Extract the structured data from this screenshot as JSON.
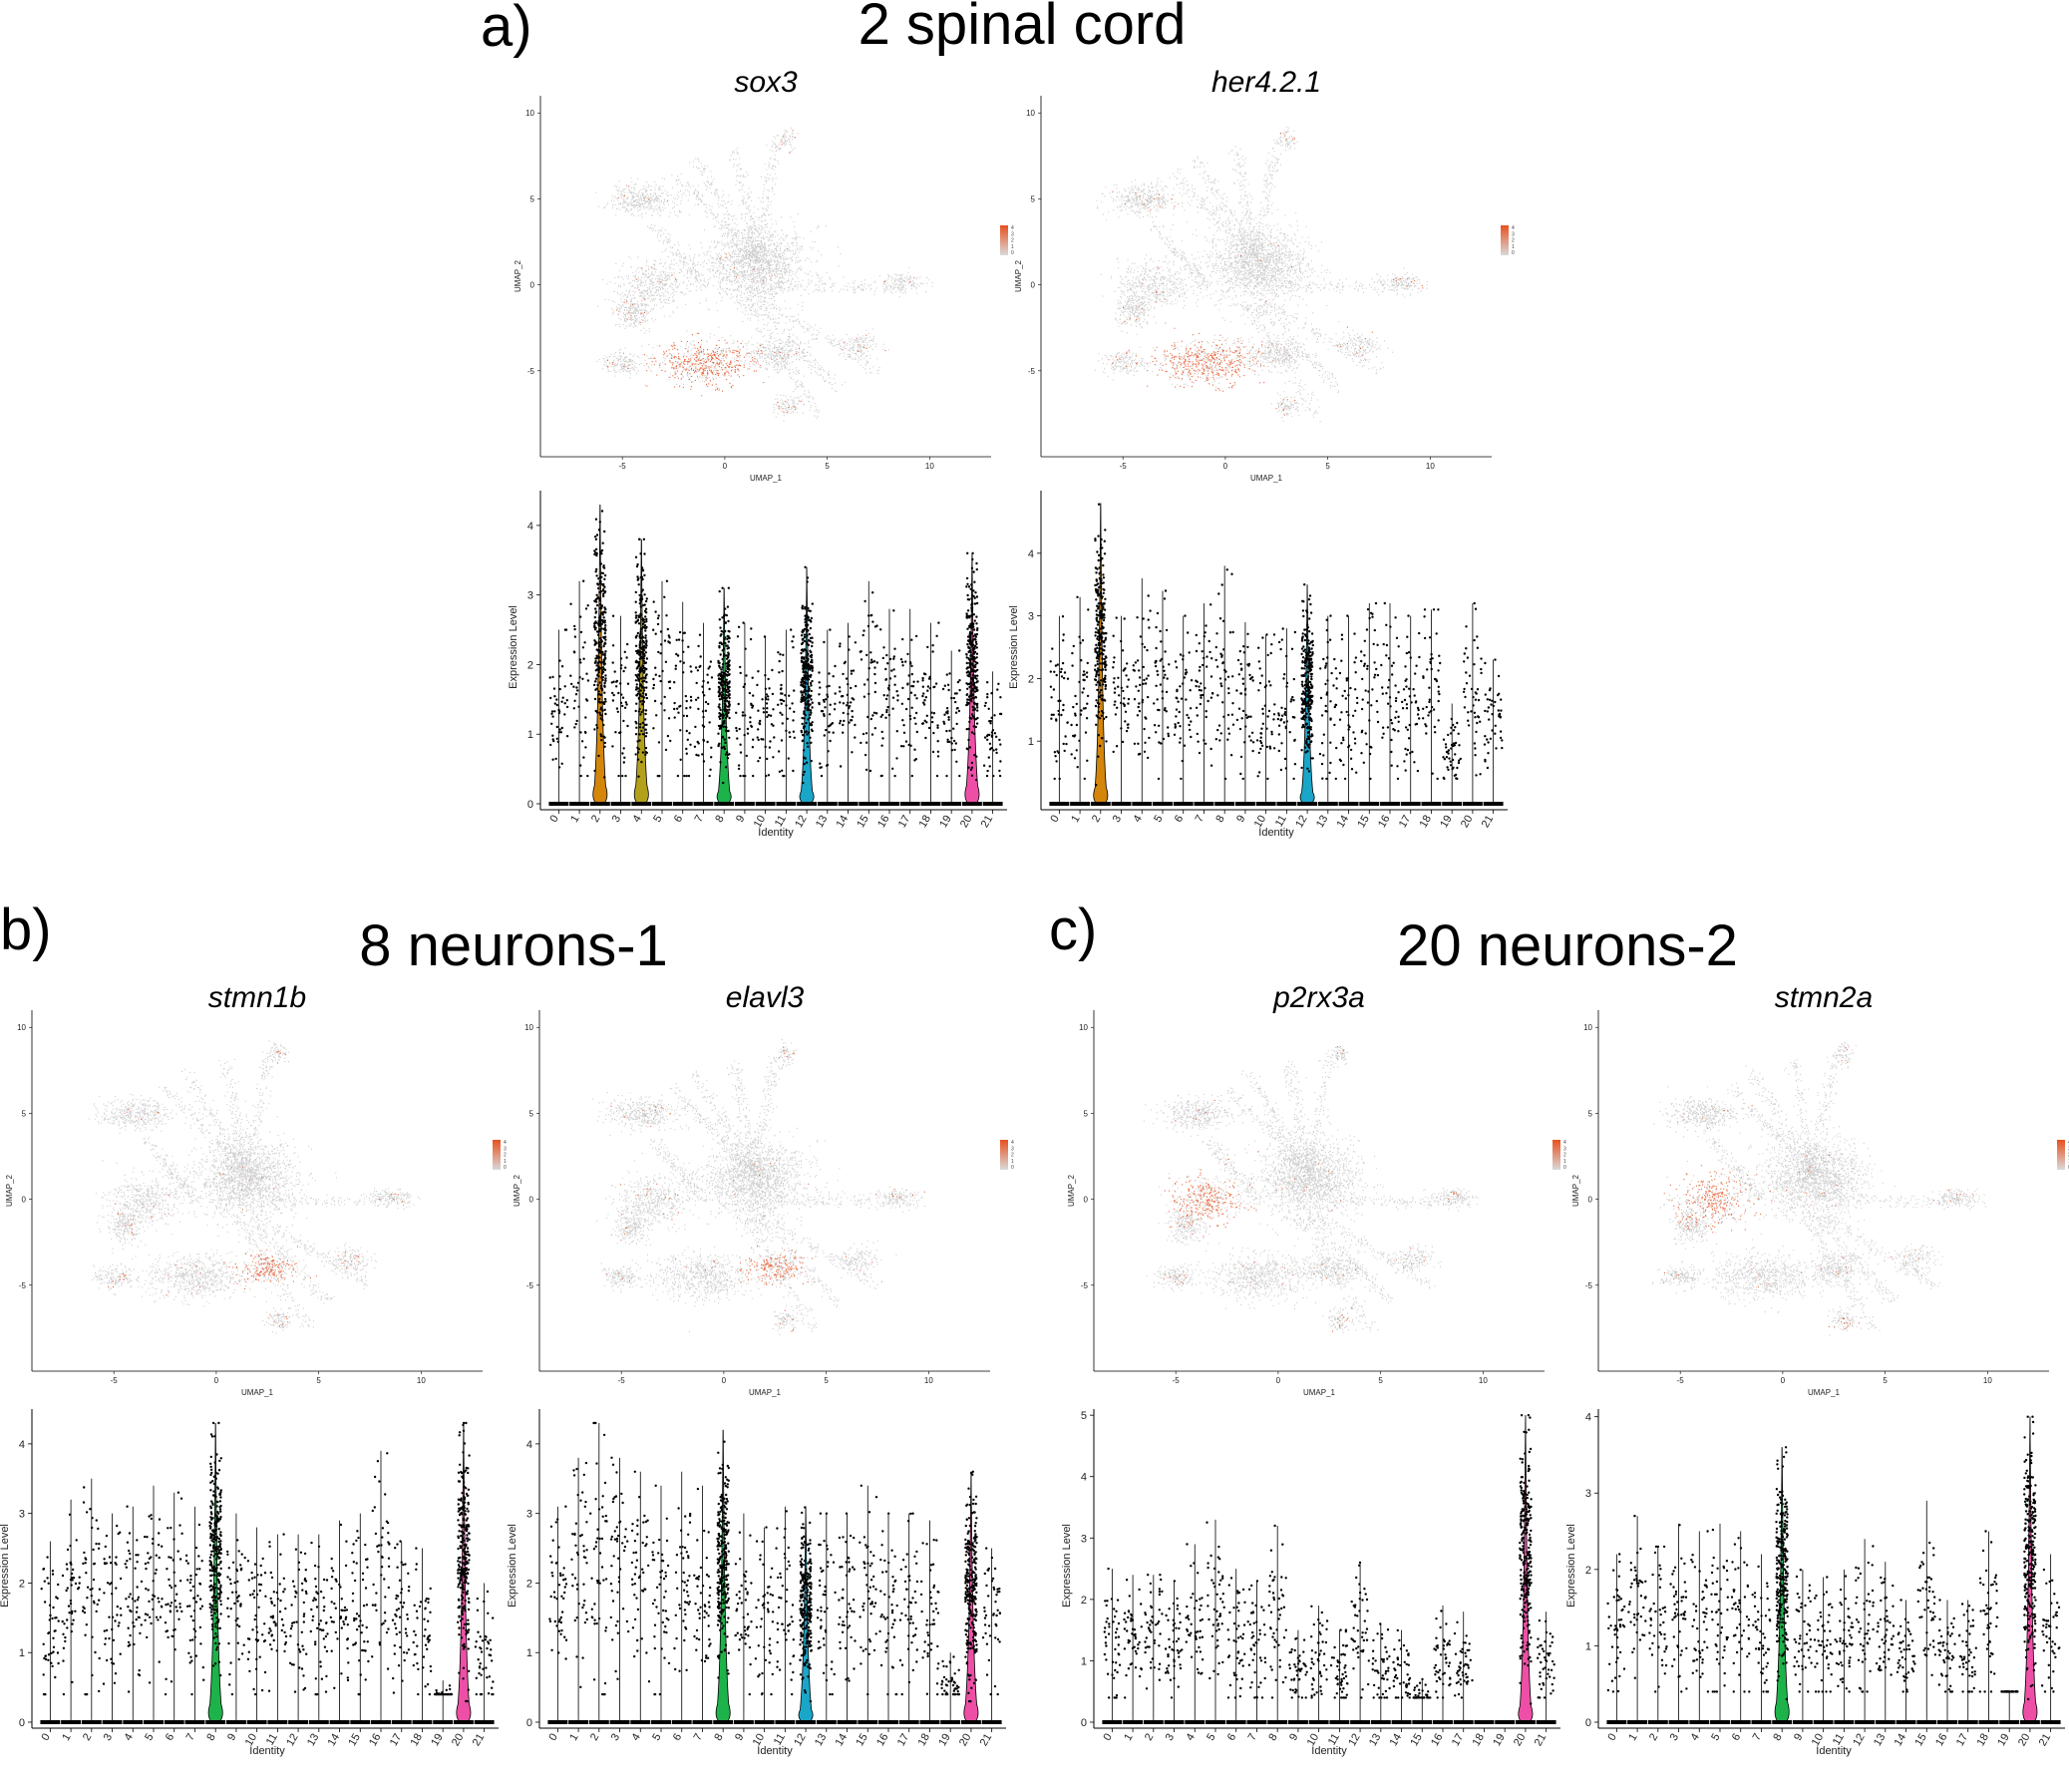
{
  "sections": [
    {
      "letter": "a)",
      "title": "2 spinal cord"
    },
    {
      "letter": "b)",
      "title": "8 neurons-1"
    },
    {
      "letter": "c)",
      "title": "20 neurons-2"
    }
  ],
  "colors": {
    "cluster_palette": {
      "2": "#d4860b",
      "4": "#b3a11a",
      "8": "#1db34a",
      "12": "#1aa6c9",
      "20": "#ee4fa6"
    },
    "expression_low": "#d9d9d9",
    "expression_high": "#e8501f",
    "umap_base": "#cfcfcf"
  },
  "chart_data": [
    {
      "type": "scatter",
      "subtype": "umap-feature-plot",
      "gene": "sox3",
      "xlabel": "UMAP_1",
      "ylabel": "UMAP_2",
      "xticks": [
        -5,
        0,
        5,
        10
      ],
      "yticks": [
        10,
        5,
        0,
        -5
      ],
      "legend_ticks": [
        "4",
        "3",
        "2",
        "1",
        "0"
      ],
      "highlight_region": "lower-center"
    },
    {
      "type": "scatter",
      "subtype": "umap-feature-plot",
      "gene": "her4.2.1",
      "xlabel": "UMAP_1",
      "ylabel": "UMAP_2",
      "xticks": [
        -5,
        0,
        5,
        10
      ],
      "yticks": [
        10,
        5,
        0,
        -5
      ],
      "legend_ticks": [
        "4",
        "3",
        "2",
        "1",
        "0"
      ],
      "highlight_region": "lower-center"
    },
    {
      "type": "violin",
      "gene": "sox3",
      "xlabel": "Identity",
      "ylabel": "Expression Level",
      "categories": [
        "0",
        "1",
        "2",
        "3",
        "4",
        "5",
        "6",
        "7",
        "8",
        "9",
        "10",
        "11",
        "12",
        "13",
        "14",
        "15",
        "16",
        "17",
        "18",
        "19",
        "20",
        "21"
      ],
      "yticks": [
        0,
        1,
        2,
        3,
        4
      ],
      "ylim": [
        0,
        4.5
      ],
      "max_values": [
        2.5,
        3.2,
        4.3,
        2.7,
        3.8,
        3.2,
        2.9,
        2.6,
        3.1,
        2.6,
        2.4,
        2.5,
        3.4,
        2.5,
        2.6,
        3.2,
        2.8,
        2.8,
        2.6,
        2.2,
        3.6,
        1.9
      ],
      "prominent_clusters": [
        "2",
        "4",
        "8",
        "12",
        "20"
      ]
    },
    {
      "type": "violin",
      "gene": "her4.2.1",
      "xlabel": "Identity",
      "ylabel": "Expression Level",
      "categories": [
        "0",
        "1",
        "2",
        "3",
        "4",
        "5",
        "6",
        "7",
        "8",
        "9",
        "10",
        "11",
        "12",
        "13",
        "14",
        "15",
        "16",
        "17",
        "18",
        "19",
        "20",
        "21"
      ],
      "yticks": [
        1,
        2,
        3,
        4
      ],
      "ylim": [
        0,
        5
      ],
      "max_values": [
        3.0,
        3.3,
        4.8,
        3.0,
        3.6,
        3.4,
        3.0,
        3.2,
        3.8,
        2.9,
        2.7,
        2.8,
        3.5,
        3.0,
        3.0,
        3.2,
        3.2,
        3.0,
        3.1,
        1.6,
        3.2,
        2.3
      ],
      "prominent_clusters": [
        "2",
        "12"
      ]
    },
    {
      "type": "scatter",
      "subtype": "umap-feature-plot",
      "gene": "stmn1b",
      "xlabel": "UMAP_1",
      "ylabel": "UMAP_2",
      "xticks": [
        -5,
        0,
        5,
        10
      ],
      "yticks": [
        10,
        5,
        0,
        -5
      ],
      "legend_ticks": [
        "4",
        "3",
        "2",
        "1",
        "0"
      ],
      "highlight_region": "lower-right"
    },
    {
      "type": "scatter",
      "subtype": "umap-feature-plot",
      "gene": "elavl3",
      "xlabel": "UMAP_1",
      "ylabel": "UMAP_2",
      "xticks": [
        -5,
        0,
        5,
        10
      ],
      "yticks": [
        10,
        5,
        0,
        -5
      ],
      "legend_ticks": [
        "4",
        "3",
        "2",
        "1",
        "0"
      ],
      "highlight_region": "lower-right"
    },
    {
      "type": "violin",
      "gene": "stmn1b",
      "xlabel": "Identity",
      "ylabel": "Expression Level",
      "categories": [
        "0",
        "1",
        "2",
        "3",
        "4",
        "5",
        "6",
        "7",
        "8",
        "9",
        "10",
        "11",
        "12",
        "13",
        "14",
        "15",
        "16",
        "17",
        "18",
        "19",
        "20",
        "21"
      ],
      "yticks": [
        0,
        1,
        2,
        3,
        4
      ],
      "ylim": [
        0,
        4.5
      ],
      "max_values": [
        2.6,
        3.2,
        3.5,
        3.0,
        3.1,
        3.4,
        3.3,
        3.1,
        4.3,
        3.0,
        2.8,
        2.7,
        2.7,
        2.7,
        2.9,
        3.0,
        3.9,
        2.6,
        2.5,
        0.6,
        4.3,
        2.0
      ],
      "prominent_clusters": [
        "8",
        "20"
      ]
    },
    {
      "type": "violin",
      "gene": "elavl3",
      "xlabel": "Identity",
      "ylabel": "Expression Level",
      "categories": [
        "0",
        "1",
        "2",
        "3",
        "4",
        "5",
        "6",
        "7",
        "8",
        "9",
        "10",
        "11",
        "12",
        "13",
        "14",
        "15",
        "16",
        "17",
        "18",
        "19",
        "20",
        "21"
      ],
      "yticks": [
        0,
        1,
        2,
        3,
        4
      ],
      "ylim": [
        0,
        4.5
      ],
      "max_values": [
        3.1,
        3.8,
        4.3,
        3.8,
        3.6,
        3.4,
        3.6,
        3.4,
        4.2,
        3.0,
        2.8,
        3.1,
        3.1,
        3.0,
        3.0,
        3.4,
        3.0,
        3.0,
        2.9,
        1.0,
        3.6,
        2.5
      ],
      "prominent_clusters": [
        "8",
        "12",
        "20"
      ]
    },
    {
      "type": "scatter",
      "subtype": "umap-feature-plot",
      "gene": "p2rx3a",
      "xlabel": "UMAP_1",
      "ylabel": "UMAP_2",
      "xticks": [
        -5,
        0,
        5,
        10
      ],
      "yticks": [
        10,
        5,
        0,
        -5
      ],
      "legend_ticks": [
        "4",
        "3",
        "2",
        "1",
        "0"
      ],
      "highlight_region": "left-small"
    },
    {
      "type": "scatter",
      "subtype": "umap-feature-plot",
      "gene": "stmn2a",
      "xlabel": "UMAP_1",
      "ylabel": "UMAP_2",
      "xticks": [
        -5,
        0,
        5,
        10
      ],
      "yticks": [
        10,
        5,
        0,
        -5
      ],
      "legend_ticks": [
        "4",
        "3",
        "2",
        "1",
        "0"
      ],
      "highlight_region": "left-small"
    },
    {
      "type": "violin",
      "gene": "p2rx3a",
      "xlabel": "Identity",
      "ylabel": "Expression Level",
      "categories": [
        "0",
        "1",
        "2",
        "3",
        "4",
        "5",
        "6",
        "7",
        "8",
        "9",
        "10",
        "11",
        "12",
        "13",
        "14",
        "15",
        "16",
        "17",
        "18",
        "19",
        "20",
        "21"
      ],
      "yticks": [
        0,
        1,
        2,
        3,
        4,
        5
      ],
      "ylim": [
        0,
        5.1
      ],
      "max_values": [
        2.5,
        2.4,
        2.4,
        2.3,
        2.9,
        3.3,
        2.5,
        2.3,
        3.2,
        1.5,
        1.9,
        1.5,
        2.6,
        1.6,
        1.5,
        0.7,
        1.9,
        1.8,
        0.0,
        0.0,
        5.0,
        1.8
      ],
      "prominent_clusters": [
        "20"
      ]
    },
    {
      "type": "violin",
      "gene": "stmn2a",
      "xlabel": "Identity",
      "ylabel": "Expression Level",
      "categories": [
        "0",
        "1",
        "2",
        "3",
        "4",
        "5",
        "6",
        "7",
        "8",
        "9",
        "10",
        "11",
        "12",
        "13",
        "14",
        "15",
        "16",
        "17",
        "18",
        "19",
        "20",
        "21"
      ],
      "yticks": [
        0,
        1,
        2,
        3,
        4
      ],
      "ylim": [
        0,
        4.1
      ],
      "max_values": [
        2.2,
        2.7,
        2.3,
        2.6,
        2.5,
        2.6,
        2.5,
        2.2,
        3.6,
        2.0,
        1.9,
        2.0,
        2.4,
        2.1,
        1.6,
        2.9,
        1.6,
        1.6,
        2.5,
        0.4,
        4.0,
        2.2
      ],
      "prominent_clusters": [
        "8",
        "20"
      ]
    }
  ]
}
